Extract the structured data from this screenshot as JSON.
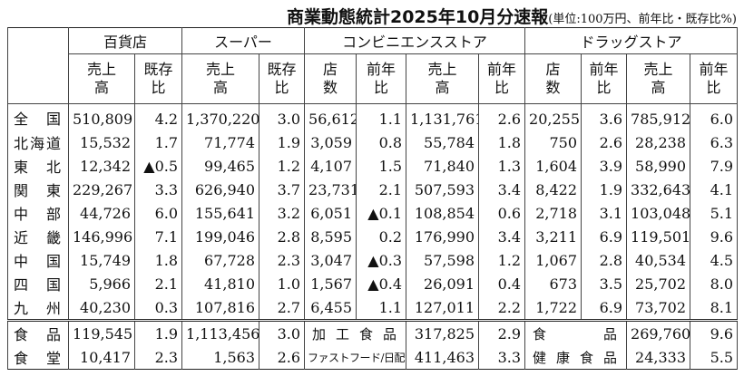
{
  "header": {
    "title": "商業動態統計2025年10月分速報",
    "subtitle": "(単位:100万円、前年比・既存比%)"
  },
  "table": {
    "groups": [
      "百貨店",
      "スーパー",
      "コンビニエンスストア",
      "ドラッグストア"
    ],
    "columns": [
      "売上高",
      "既存比",
      "売上高",
      "既存比",
      "店 数",
      "前年比",
      "売上高",
      "前年比",
      "店 数",
      "前年比",
      "売上高",
      "前年比"
    ],
    "rows": [
      {
        "label": "全国",
        "values": [
          "510,809",
          "4.2",
          "1,370,220",
          "3.0",
          "56,612",
          "1.1",
          "1,131,761",
          "2.6",
          "20,255",
          "3.6",
          "785,912",
          "6.0"
        ]
      },
      {
        "label": "北海道",
        "values": [
          "15,532",
          "1.7",
          "71,774",
          "1.9",
          "3,059",
          "0.8",
          "55,784",
          "1.8",
          "750",
          "2.6",
          "28,238",
          "6.3"
        ]
      },
      {
        "label": "東北",
        "values": [
          "12,342",
          "▲0.5",
          "99,465",
          "1.2",
          "4,107",
          "1.5",
          "71,840",
          "1.3",
          "1,604",
          "3.9",
          "58,990",
          "7.9"
        ]
      },
      {
        "label": "関東",
        "values": [
          "229,267",
          "3.3",
          "626,940",
          "3.7",
          "23,731",
          "2.1",
          "507,593",
          "3.4",
          "8,422",
          "1.9",
          "332,643",
          "4.1"
        ]
      },
      {
        "label": "中部",
        "values": [
          "44,726",
          "6.0",
          "155,641",
          "3.2",
          "6,051",
          "▲0.1",
          "108,854",
          "0.6",
          "2,718",
          "3.1",
          "103,048",
          "5.1"
        ]
      },
      {
        "label": "近畿",
        "values": [
          "146,996",
          "7.1",
          "199,046",
          "2.8",
          "8,595",
          "0.2",
          "176,990",
          "3.4",
          "3,211",
          "6.9",
          "119,501",
          "9.6"
        ]
      },
      {
        "label": "中国",
        "values": [
          "15,749",
          "1.8",
          "67,728",
          "2.3",
          "3,047",
          "▲0.3",
          "57,598",
          "1.2",
          "1,067",
          "2.8",
          "40,534",
          "4.5"
        ]
      },
      {
        "label": "四国",
        "values": [
          "5,966",
          "2.1",
          "41,810",
          "1.0",
          "1,567",
          "▲0.4",
          "26,091",
          "0.4",
          "673",
          "3.5",
          "25,702",
          "8.0"
        ]
      },
      {
        "label": "九州",
        "values": [
          "40,230",
          "0.3",
          "107,816",
          "2.7",
          "6,455",
          "1.1",
          "127,011",
          "2.2",
          "1,722",
          "6.9",
          "73,702",
          "8.1"
        ]
      }
    ],
    "bottom_rows": [
      {
        "cells": [
          "食品",
          "119,545",
          "1.9",
          "1,113,456",
          "3.0",
          "加工食品",
          "317,825",
          "2.9",
          "食品",
          "269,760",
          "9.6"
        ]
      },
      {
        "cells": [
          "食堂",
          "10,417",
          "2.3",
          "1,563",
          "2.6",
          "ファストフード/日配",
          "411,463",
          "3.3",
          "健康食品",
          "24,333",
          "5.5"
        ]
      }
    ]
  }
}
